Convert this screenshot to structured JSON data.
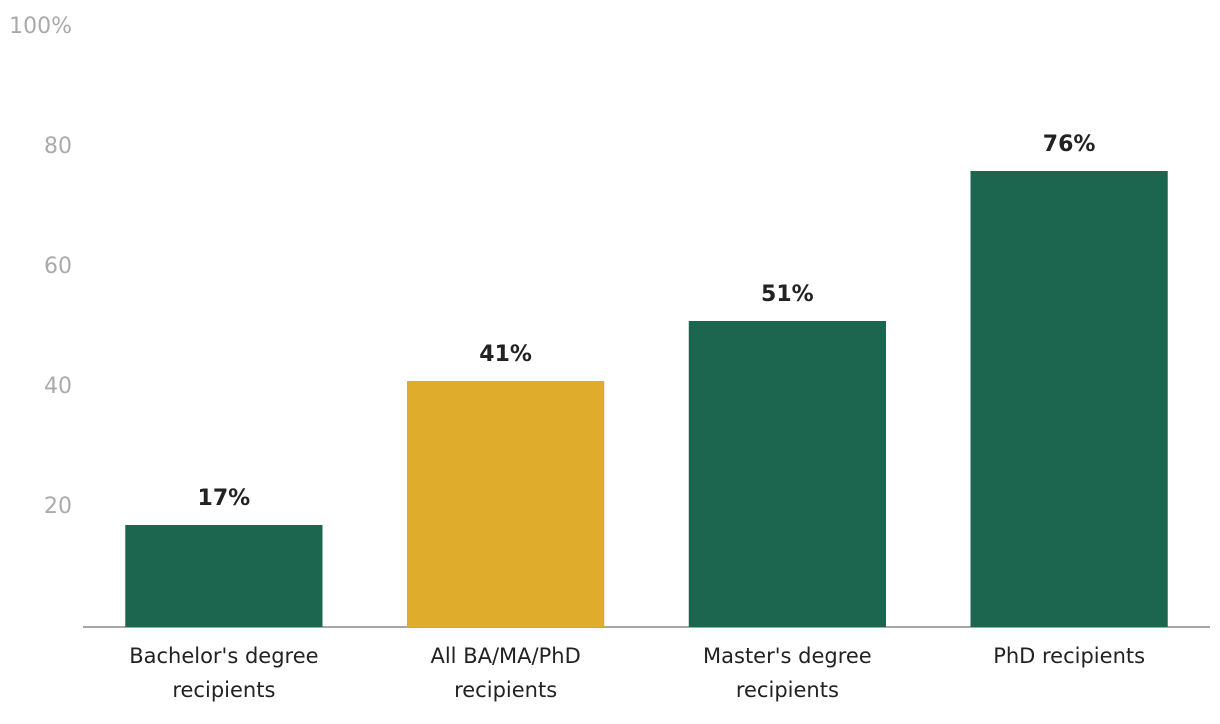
{
  "chart_data": {
    "type": "bar",
    "categories": [
      "Bachelor's degree recipients",
      "All BA/MA/PhD recipients",
      "Master's degree recipients",
      "PhD recipients"
    ],
    "values": [
      17,
      41,
      51,
      76
    ],
    "value_labels": [
      "17%",
      "41%",
      "51%",
      "76%"
    ],
    "colors": [
      "#1c6650",
      "#e0ac2b",
      "#1c6650",
      "#1c6650"
    ],
    "ylim": [
      0,
      100
    ],
    "yticks": [
      20,
      40,
      60,
      80,
      {
        "value": 100,
        "label": "100%"
      }
    ],
    "grid": false
  }
}
